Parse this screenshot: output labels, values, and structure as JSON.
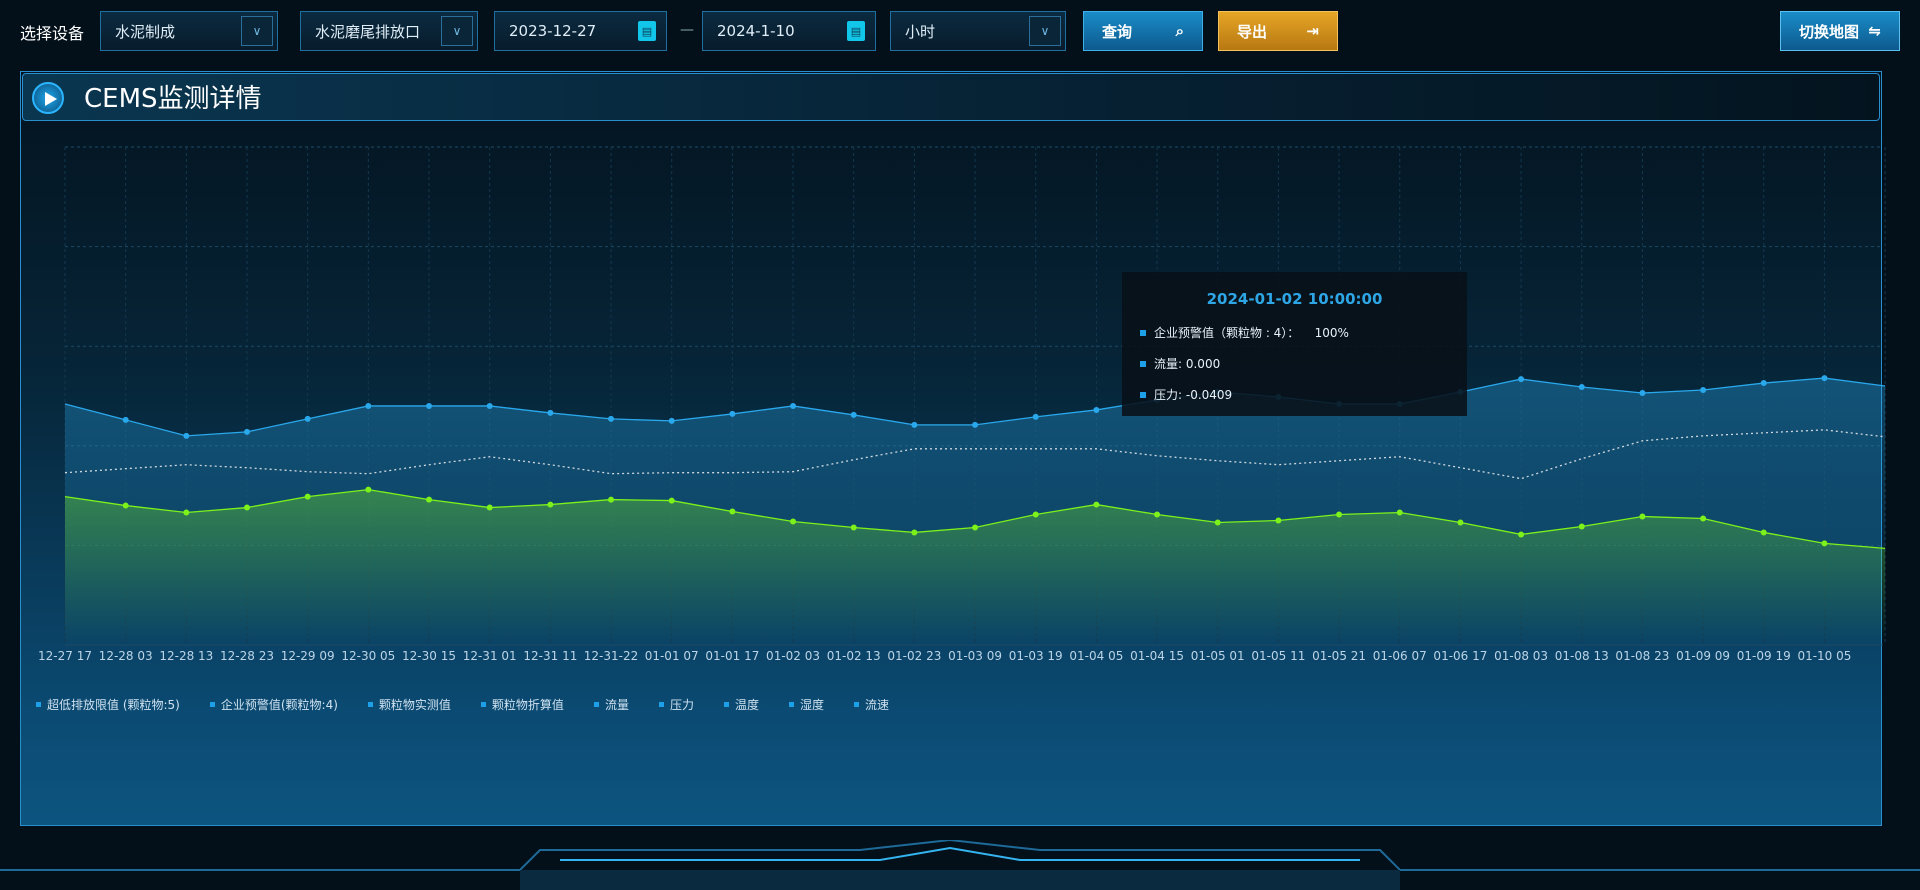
{
  "toolbar": {
    "device_label": "选择设备",
    "device_select": "水泥制成",
    "outlet_select": "水泥磨尾排放口",
    "start_date": "2023-12-27",
    "date_separator": "—",
    "end_date": "2024-1-10",
    "interval_select": "小时",
    "query_label": "查询",
    "export_label": "导出",
    "switch_map_label": "切换地图"
  },
  "panel": {
    "title": "CEMS监测详情"
  },
  "tooltip": {
    "title": "2024-01-02 10:00:00",
    "rows": [
      "企业预警值（颗粒物 : 4）：    100%",
      "流量: 0.000",
      "压力: -0.0409"
    ]
  },
  "legend": [
    "超低排放限值 (颗粒物:5)",
    "企业预警值(颗粒物:4)",
    "颗粒物实测值",
    "颗粒物折算值",
    "流量",
    "压力",
    "温度",
    "湿度",
    "流速"
  ],
  "colors": {
    "accent": "#1ea0e8",
    "export": "#e0a024",
    "line_blue": "#2aa8ec",
    "line_green": "#7cf21a",
    "line_dotted": "#d0d8e0"
  },
  "chart_data": {
    "type": "line",
    "grid": true,
    "ylim": [
      0,
      5
    ],
    "categories": [
      "12-27 17",
      "12-28 03",
      "12-28 13",
      "12-28 23",
      "12-29 09",
      "12-30 05",
      "12-30 15",
      "12-31 01",
      "12-31 11",
      "12-31-22",
      "01-01 07",
      "01-01 17",
      "01-02 03",
      "01-02 13",
      "01-02 23",
      "01-03 09",
      "01-03 19",
      "01-04 05",
      "01-04 15",
      "01-05 01",
      "01-05 11",
      "01-05 21",
      "01-06 07",
      "01-06 17",
      "01-08 03",
      "01-08 13",
      "01-08 23",
      "01-09 09",
      "01-09 19",
      "01-10 05",
      ""
    ],
    "series": [
      {
        "color": "#2aa8ec",
        "style": "area",
        "values": [
          2.42,
          2.26,
          2.1,
          2.14,
          2.27,
          2.4,
          2.4,
          2.4,
          2.33,
          2.27,
          2.25,
          2.32,
          2.4,
          2.31,
          2.21,
          2.21,
          2.29,
          2.36,
          2.46,
          2.54,
          2.49,
          2.42,
          2.42,
          2.54,
          2.67,
          2.59,
          2.53,
          2.56,
          2.63,
          2.68,
          2.6
        ]
      },
      {
        "color": "#d0d8e0",
        "style": "dotted",
        "values": [
          1.73,
          1.77,
          1.81,
          1.78,
          1.74,
          1.72,
          1.81,
          1.89,
          1.81,
          1.72,
          1.73,
          1.73,
          1.74,
          1.86,
          1.97,
          1.97,
          1.97,
          1.97,
          1.9,
          1.85,
          1.81,
          1.85,
          1.89,
          1.78,
          1.67,
          1.87,
          2.05,
          2.1,
          2.13,
          2.16,
          2.09
        ]
      },
      {
        "color": "#7cf21a",
        "style": "area",
        "values": [
          1.49,
          1.4,
          1.33,
          1.38,
          1.49,
          1.56,
          1.46,
          1.38,
          1.41,
          1.46,
          1.45,
          1.34,
          1.24,
          1.18,
          1.13,
          1.18,
          1.31,
          1.41,
          1.31,
          1.23,
          1.25,
          1.31,
          1.33,
          1.23,
          1.11,
          1.19,
          1.29,
          1.27,
          1.13,
          1.02,
          0.97
        ]
      }
    ]
  }
}
